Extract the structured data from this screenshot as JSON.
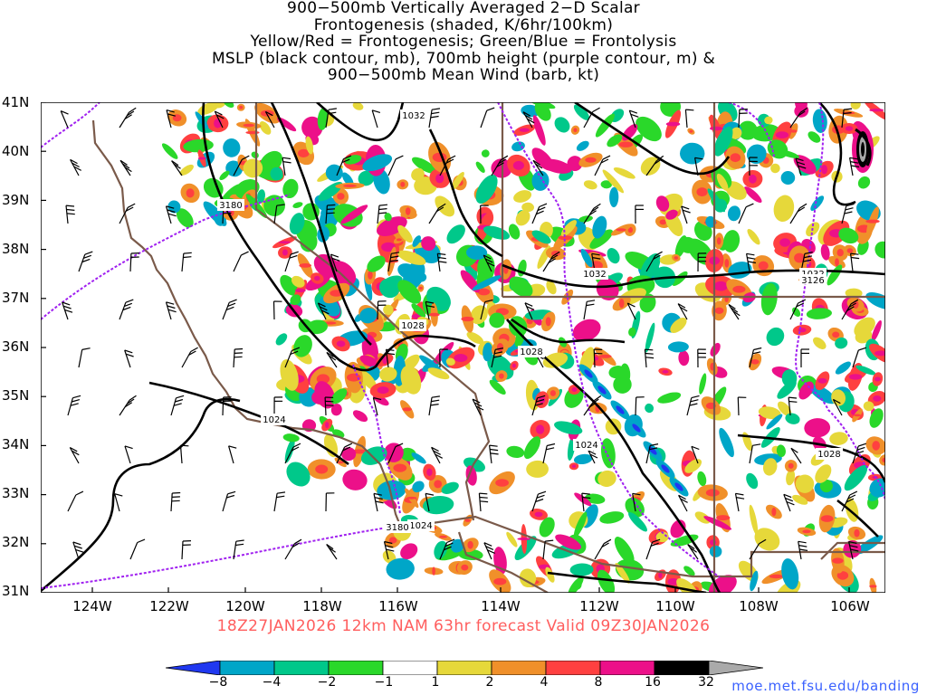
{
  "title": {
    "lines": [
      "900−500mb Vertically Averaged 2−D Scalar",
      "Frontogenesis (shaded, K/6hr/100km)",
      "Yellow/Red = Frontogenesis;  Green/Blue = Frontolysis",
      "MSLP (black contour, mb), 700mb height (purple contour, m) &",
      "900−500mb Mean Wind (barb, kt)"
    ]
  },
  "map": {
    "latitude_labels": [
      "41N",
      "40N",
      "39N",
      "38N",
      "37N",
      "36N",
      "35N",
      "34N",
      "33N",
      "32N",
      "31N"
    ],
    "longitude_labels": [
      "124W",
      "122W",
      "120W",
      "118W",
      "116W",
      "114W",
      "112W",
      "110W",
      "108W",
      "106W"
    ],
    "extent": {
      "lon_min": -125.5,
      "lon_max": -105.15,
      "lat_min": 31,
      "lat_max": 41
    },
    "mslp_labels": [
      "1032",
      "1032",
      "1032",
      "1028",
      "1028",
      "1024",
      "1024",
      "1024",
      "1028"
    ],
    "height_labels": [
      "3180",
      "3180",
      "3126"
    ],
    "colors": {
      "mslp_contour": "#000000",
      "height_contour": "#a020f0",
      "boundaries": "#7a5a4a",
      "barbs": "#000000"
    }
  },
  "valid_time": "18Z27JAN2026  12km NAM 63hr forecast Valid 09Z30JAN2026",
  "colorbar": {
    "ticks": [
      "−8",
      "−4",
      "−2",
      "−1",
      "1",
      "2",
      "4",
      "8",
      "16",
      "32"
    ],
    "colors": [
      "#2038f0",
      "#00a6c8",
      "#00c88a",
      "#2ad82a",
      "#ffffff",
      "#e6d83a",
      "#f0902a",
      "#ff4040",
      "#ec1089",
      "#000000",
      "#aaaaaa"
    ]
  },
  "source": "moe.met.fsu.edu/banding"
}
